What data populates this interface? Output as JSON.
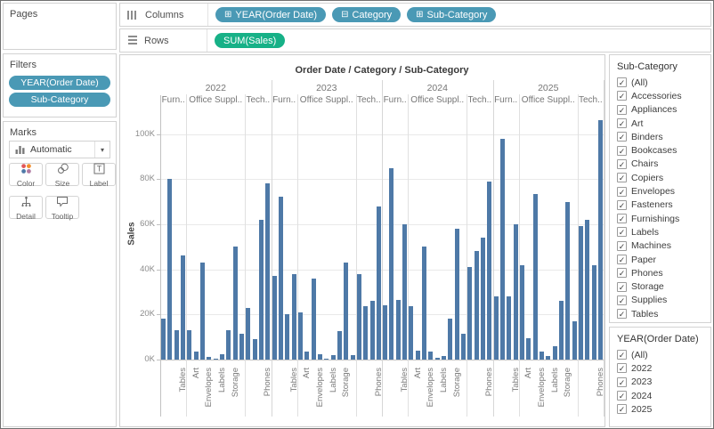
{
  "left_panel": {
    "pages_label": "Pages",
    "filters_label": "Filters",
    "filter_pills": [
      "YEAR(Order Date)",
      "Sub-Category"
    ],
    "marks_label": "Marks",
    "mark_type_selector": {
      "value": "Automatic",
      "icon": "bar-chart-icon",
      "caret": "▾"
    },
    "mark_buttons": [
      {
        "label": "Color",
        "icon": "color-icon"
      },
      {
        "label": "Size",
        "icon": "size-icon"
      },
      {
        "label": "Label",
        "icon": "label-icon"
      },
      {
        "label": "Detail",
        "icon": "detail-icon"
      },
      {
        "label": "Tooltip",
        "icon": "tooltip-icon"
      }
    ]
  },
  "shelves": {
    "columns_label": "Columns",
    "rows_label": "Rows",
    "columns_pills": [
      {
        "icon": "expand-icon",
        "glyph": "⊞",
        "label": "YEAR(Order Date)",
        "color": "blue"
      },
      {
        "icon": "collapse-icon",
        "glyph": "⊟",
        "label": "Category",
        "color": "blue"
      },
      {
        "icon": "expand-icon",
        "glyph": "⊞",
        "label": "Sub-Category",
        "color": "blue"
      }
    ],
    "rows_pills": [
      {
        "label": "SUM(Sales)",
        "color": "green"
      }
    ]
  },
  "chart_data": {
    "type": "bar",
    "title": "Order Date / Category / Sub-Category",
    "ylabel": "Sales",
    "y_ticks": [
      {
        "label": "0K",
        "value": 0
      },
      {
        "label": "20K",
        "value": 20
      },
      {
        "label": "40K",
        "value": 40
      },
      {
        "label": "60K",
        "value": 60
      },
      {
        "label": "80K",
        "value": 80
      },
      {
        "label": "100K",
        "value": 100
      }
    ],
    "ylim_k": [
      0,
      112
    ],
    "value_unit": "thousands (K) of SUM(Sales)",
    "grid": true,
    "years": [
      "2022",
      "2023",
      "2024",
      "2025"
    ],
    "categories": [
      {
        "name": "Furniture",
        "header_label": "Furn..",
        "subcategories": [
          "Bookcases",
          "Chairs",
          "Furnishings",
          "Tables"
        ]
      },
      {
        "name": "Office Supplies",
        "header_label": "Office Suppl..",
        "subcategories": [
          "Appliances",
          "Art",
          "Binders",
          "Envelopes",
          "Fasteners",
          "Labels",
          "Paper",
          "Storage",
          "Supplies"
        ]
      },
      {
        "name": "Technology",
        "header_label": "Tech..",
        "subcategories": [
          "Accessories",
          "Copiers",
          "Machines",
          "Phones"
        ]
      }
    ],
    "visible_x_labels": [
      "Tables",
      "Art",
      "Envelopes",
      "Labels",
      "Storage",
      "Phones"
    ],
    "label_slot_indices": {
      "Furniture": [
        3
      ],
      "Office Supplies": [
        1,
        3,
        5,
        7
      ],
      "Technology": [
        3
      ]
    },
    "series": [
      {
        "year": "2022",
        "values_k": {
          "Furniture": [
            18,
            80,
            13,
            46
          ],
          "Office Supplies": [
            13,
            3.5,
            43,
            1,
            0.5,
            2.5,
            13,
            50,
            11.5
          ],
          "Technology": [
            23,
            9,
            62,
            78
          ]
        }
      },
      {
        "year": "2023",
        "values_k": {
          "Furniture": [
            37,
            72,
            20,
            38
          ],
          "Office Supplies": [
            21,
            3.5,
            36,
            2.5,
            0.5,
            2,
            12.5,
            43,
            2
          ],
          "Technology": [
            38,
            23.5,
            26,
            68
          ]
        }
      },
      {
        "year": "2024",
        "values_k": {
          "Furniture": [
            24,
            85,
            26.5,
            60
          ],
          "Office Supplies": [
            23.5,
            4,
            50,
            3.5,
            0.7,
            1.5,
            18,
            58,
            11.5
          ],
          "Technology": [
            41,
            48,
            54,
            79
          ]
        }
      },
      {
        "year": "2025",
        "values_k": {
          "Furniture": [
            28,
            98,
            28,
            60
          ],
          "Office Supplies": [
            42,
            9.5,
            73.5,
            3.5,
            1.5,
            6,
            26,
            70,
            17
          ],
          "Technology": [
            59,
            62,
            42,
            106
          ]
        }
      }
    ]
  },
  "right_panel": {
    "check_glyph": "✓",
    "subcategory_filter": {
      "title": "Sub-Category",
      "all_checked": true,
      "options": [
        "(All)",
        "Accessories",
        "Appliances",
        "Art",
        "Binders",
        "Bookcases",
        "Chairs",
        "Copiers",
        "Envelopes",
        "Fasteners",
        "Furnishings",
        "Labels",
        "Machines",
        "Paper",
        "Phones",
        "Storage",
        "Supplies",
        "Tables"
      ]
    },
    "year_filter": {
      "title": "YEAR(Order Date)",
      "all_checked": true,
      "options": [
        "(All)",
        "2022",
        "2023",
        "2024",
        "2025"
      ]
    }
  },
  "colors": {
    "bar": "#4e79a7",
    "pill_blue": "#4a99b5",
    "pill_green": "#17b187",
    "color_button_dots": [
      "#e15759",
      "#f28e2b",
      "#4e79a7",
      "#b07aa1"
    ]
  }
}
